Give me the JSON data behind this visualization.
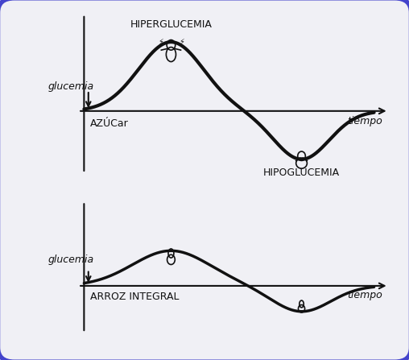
{
  "fig_bg": "#f0f0f5",
  "inner_bg": "#f0f0f5",
  "border_color": "#4444cc",
  "border_linewidth": 4,
  "top_chart": {
    "ylabel": "glucemia",
    "xlabel": "tiempo",
    "xlabel_label": "AZÚCar",
    "hiperglucemia_label": "HIPERGLUCEMIA",
    "hipoglucemia_label": "HIPOGLUCEMIA",
    "curve_color": "#111111",
    "curve_lw": 3.0
  },
  "bottom_chart": {
    "ylabel": "glucemia",
    "xlabel": "tiempo",
    "xlabel_label": "ARROZ INTEGRAL",
    "curve_color": "#111111",
    "curve_lw": 2.5
  },
  "axis_color": "#111111",
  "text_color": "#111111",
  "fontsize_label": 9,
  "fontsize_annotation": 9
}
